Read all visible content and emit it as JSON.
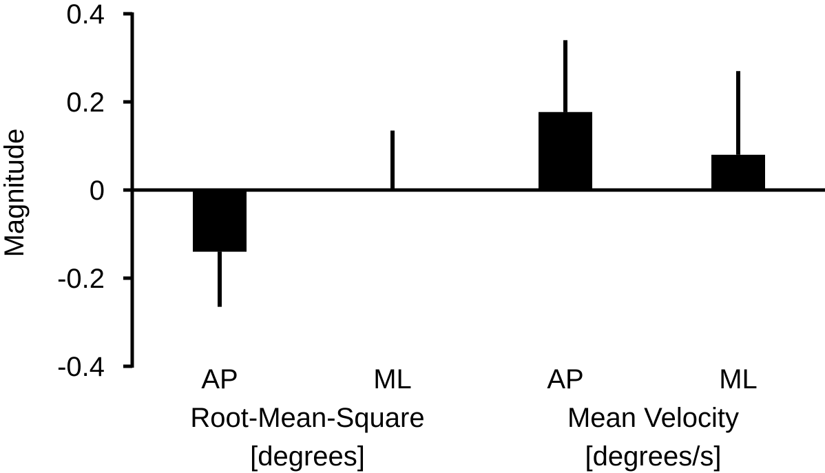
{
  "chart_data": {
    "type": "bar",
    "title": "",
    "xlabel": "",
    "ylabel": "Magnitude",
    "ylim": [
      -0.4,
      0.4
    ],
    "yticks": [
      0.4,
      0.2,
      0,
      -0.2,
      -0.4
    ],
    "ytick_labels": [
      "0.4",
      "0.2",
      "0",
      "-0.2",
      "-0.4"
    ],
    "categories": [
      "AP",
      "ML",
      "AP",
      "ML"
    ],
    "groups": [
      {
        "label_line1": "Root-Mean-Square",
        "label_line2": "[degrees]",
        "categories": [
          0,
          1
        ]
      },
      {
        "label_line1": "Mean Velocity",
        "label_line2": "[degrees/s]",
        "categories": [
          2,
          3
        ]
      }
    ],
    "values": [
      -0.14,
      0.002,
      0.177,
      0.08
    ],
    "error": [
      0.125,
      0.133,
      0.163,
      0.19
    ],
    "bar_color": "#000000",
    "grid": false,
    "legend": "none"
  }
}
